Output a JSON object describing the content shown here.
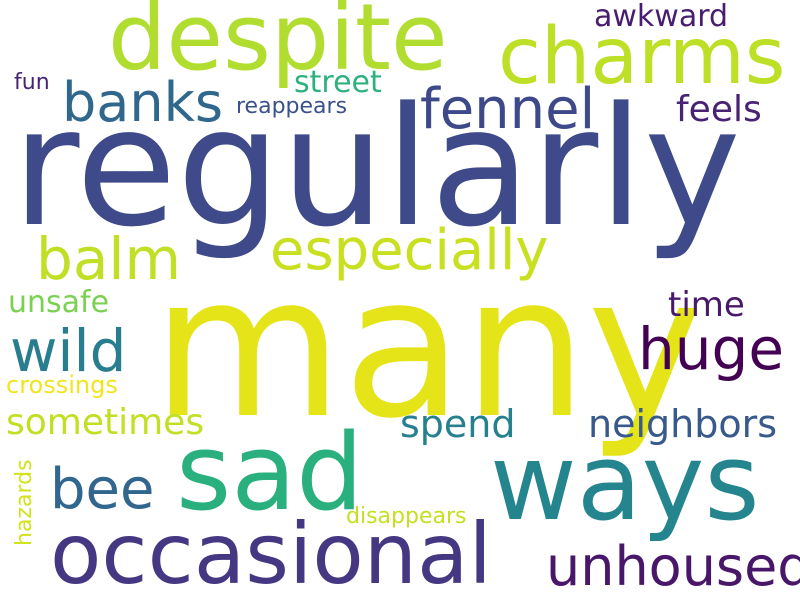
{
  "words": {
    "regularly": {
      "text": "regularly",
      "color": "#3e4a89"
    },
    "many": {
      "text": "many",
      "color": "#e5e419"
    },
    "despite": {
      "text": "despite",
      "color": "#b0dd2f"
    },
    "charms": {
      "text": "charms",
      "color": "#bddf26"
    },
    "ways": {
      "text": "ways",
      "color": "#25858e"
    },
    "sad": {
      "text": "sad",
      "color": "#2ab07f"
    },
    "occasional": {
      "text": "occasional",
      "color": "#453781"
    },
    "fennel": {
      "text": "fennel",
      "color": "#3e4989"
    },
    "banks": {
      "text": "banks",
      "color": "#30678d"
    },
    "especially": {
      "text": "especially",
      "color": "#c8e020"
    },
    "balm": {
      "text": "balm",
      "color": "#c0df25"
    },
    "huge": {
      "text": "huge",
      "color": "#440154"
    },
    "wild": {
      "text": "wild",
      "color": "#287d8e"
    },
    "unhoused": {
      "text": "unhoused",
      "color": "#481769"
    },
    "bee": {
      "text": "bee",
      "color": "#31668e"
    },
    "neighbors": {
      "text": "neighbors",
      "color": "#38598c"
    },
    "spend": {
      "text": "spend",
      "color": "#27808e"
    },
    "sometimes": {
      "text": "sometimes",
      "color": "#c2df23"
    },
    "awkward": {
      "text": "awkward",
      "color": "#481d6f"
    },
    "feels": {
      "text": "feels",
      "color": "#482374"
    },
    "time": {
      "text": "time",
      "color": "#48186a"
    },
    "unsafe": {
      "text": "unsafe",
      "color": "#7ad151"
    },
    "street": {
      "text": "street",
      "color": "#2db27d"
    },
    "reappears": {
      "text": "reappears",
      "color": "#3b518b"
    },
    "crossings": {
      "text": "crossings",
      "color": "#f1e51d"
    },
    "fun": {
      "text": "fun",
      "color": "#482475"
    },
    "hazards": {
      "text": "hazards",
      "color": "#d2e21b"
    },
    "disappears": {
      "text": "disappears",
      "color": "#c5e021"
    }
  }
}
